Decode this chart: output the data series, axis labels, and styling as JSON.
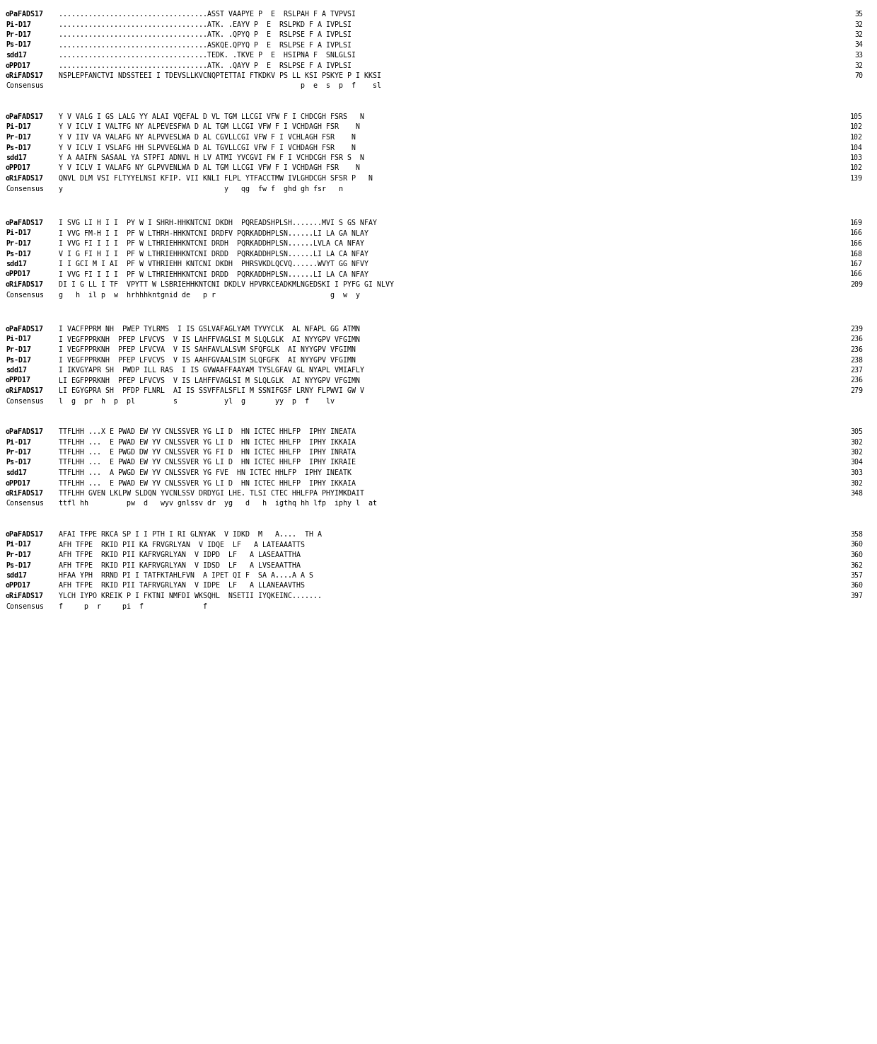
{
  "blocks": [
    {
      "sequences": [
        {
          "name": "oPaFADS17",
          "seq": "...................................ASST VAAPYE P  E  RSLPAH F A VPVSI",
          "num": 35
        },
        {
          "name": "Pi-D17",
          "seq": "...................................ATK. .EAYV P  E  RSLPKD F A VPLSI",
          "num": 32
        },
        {
          "name": "Pr-D17",
          "seq": "...................................ATK. .QPYQ P  E  RSLPSE F A VPLSI",
          "num": 32
        },
        {
          "name": "Ps-D17",
          "seq": "...................................ASKQE.QPYQ P  E  RSLPSE F A VPLSI",
          "num": 34
        },
        {
          "name": "sdd17",
          "seq": "...................................TEDK. .TKVE P  E  HSIPNA F  SNLGLSI",
          "num": 33
        },
        {
          "name": "oPPD17",
          "seq": "...................................ATK. .QAYV P  E  RSLPSE F A VPLSI",
          "num": 32
        },
        {
          "name": "oRiFADS17",
          "seq": "NSPLEPFANCTVI NDSSTEEI I TDEVSLLKVCNQPTETTAI FTKDKV PS LL  KSI PSKYE P I KKSI",
          "num": 70
        },
        {
          "name": "Consensus",
          "seq": "                                                         p   e   s   p  f    sl",
          "num": null
        }
      ]
    },
    {
      "sequences": [
        {
          "name": "oPaFADS17",
          "seq": "Y V VALG I GS LALG YY  ALAI VQEFAL D VL TGM LLCGI VFW F I CHDCGH  FSRS   N",
          "num": 105
        },
        {
          "name": "Pi-D17",
          "seq": "Y V ICLV I VA LTFG NY  ALPEVESFWA D AL  TGM LLCGI VFW F I VCHDAGH  FSR    N",
          "num": 102
        },
        {
          "name": "Pr-D17",
          "seq": "Y V IV VA  VA LAFG NY  ALPVVESLWA D AL  CGVLLCGI VFW F I VCHLAGH  FSR    N",
          "num": 102
        },
        {
          "name": "Ps-D17",
          "seq": "Y V ICLV I VS LAFG HH  SLPVVEGLWA D AL  TGVLLCGI VFW F I VCHDAGH  FSR    N",
          "num": 104
        },
        {
          "name": "sdd17",
          "seq": "Y A AAI FN SASAAL YA  STPFI ADNVL H LV ATMI YVCGVI FW F I VCHDCGH  FSR S  N",
          "num": 103
        },
        {
          "name": "oPPD17",
          "seq": "Y V ICLV I VA LAFG NY  GLPVVENLWA D AL  TGM LLCGI VFW F I VCHDAGH  FSR    N",
          "num": 102
        },
        {
          "name": "oRiFADS17",
          "seq": "QNVL DLM VSI  FLTYYELNSI KFIP. VI I KNLI FLPL YTFACCTMW  IVLGHDCGH SFSR P   N",
          "num": 139
        },
        {
          "name": "Consensus",
          "seq": "y                                         y   qg  fw f  ghd gh  fsr   n",
          "num": null
        }
      ],
      "underline": "ghd gh"
    },
    {
      "sequences": [
        {
          "name": "oPaFADS17",
          "seq": "I SVG LI H I I  PY  W I SBRH-HHKNTCNI DKDH  PQREADSHPLSH.......MVI S GS NFAY",
          "num": 169
        },
        {
          "name": "Pi-D17",
          "seq": "I VVG FM-H I I  PF  W LTHRH-HHKNTCNI DRDFV PQRKADDHPLSN......LI LA GA NLAY",
          "num": 166
        },
        {
          "name": "Pr-D17",
          "seq": "I VVG FI I I I  PF  W LTHRIEHHKNTCNI DRDH  PQRKADDHPLSN......LVLA CA NFAY",
          "num": 166
        },
        {
          "name": "Ps-D17",
          "seq": "V I G FI H I I  PF  W LTHRIEHHKNTCNI DRDD  PQRKADDHPLSN......LI LA CA NFAY",
          "num": 168
        },
        {
          "name": "sdd17",
          "seq": "I I GCI M I AI  PF  W VTHRIEHH KNTCNI DKDH  PHRSVKDLQCVQ......WVYT GG NFVY",
          "num": 167
        },
        {
          "name": "oPPD17",
          "seq": "I VVG FI I I I  PF  W LTHRIEHHKNTCNI DRDD  PQRKADDHPLSN......LI LA CA NFAY",
          "num": 166
        },
        {
          "name": "oRiFADS17",
          "seq": "DI I G LL I TF  VPYTT W LSBRIEHHKNTCNI DKDLV HPVRKCEADKMLNGEDSKI I PYFG GI NLVY",
          "num": 209
        },
        {
          "name": "Consensus",
          "seq": "g   h  il p  w  hrhhhkntgnid de   p r                           g  w  y",
          "num": null
        }
      ],
      "underline": "hrhhhknt"
    },
    {
      "sequences": [
        {
          "name": "oPaFADS17",
          "seq": "I VACFPPRM NH  PWEP TYLRMS  I IS GSLVAFAGLYAM TYVYCLK  AL NFAPL GG ATMN",
          "num": 239
        },
        {
          "name": "Pi-D17",
          "seq": "I VEGFPPRKNH  PFEP LFVCVS  V IS LAHFFVAGLSI M SLQLGLK  AI NYYGPV VFGIMN",
          "num": 236
        },
        {
          "name": "Pr-D17",
          "seq": "I VEGFPPRKNH  PFEP LFVCVA  V IS SAHFAVLALSVM SFQFGLK  AI NYYGPV VFGIMN",
          "num": 236
        },
        {
          "name": "Ps-D17",
          "seq": "I VEGFPPRKNH  PFEP LFVCVS  V IS AAHFGVAALSIM SLQFGFK  AI NYYGPV VFGIMN",
          "num": 238
        },
        {
          "name": "sdd17",
          "seq": "I IKVGYAPR SH  PWDP ILL RAS  I IS GVWAAFFAAYAM TYSLGFAV GL NYAPL VMIAFLY",
          "num": 237
        },
        {
          "name": "oPPD17",
          "seq": "LI EGFPPRKNH  PFEP LFVCVS  V IS LAHFFVAGLSI M SLQLGLK  AI NYYGPV VFGIMN",
          "num": 236
        },
        {
          "name": "oRiFADS17",
          "seq": "LI EGYGPRA SH  PFDP FLNRL  AI IS SSVFFALSFLI M SSNIFGSF  LRNY FLPWVI GW V",
          "num": 279
        },
        {
          "name": "Consensus",
          "seq": "l  g  pr   h  p   pl          s           yl  g       yy  p   f    lv",
          "num": null
        }
      ]
    },
    {
      "sequences": [
        {
          "name": "oPaFADS17",
          "seq": "TTFLHH ...X E PWAD EW YV CNLSSVER YG LI D  HN ICTEC HHLFP  IPHY INEATA",
          "num": 305
        },
        {
          "name": "Pi-D17",
          "seq": "TTFLHH ... E PWAD EW YV CNLSSVER YG LI D  HN ICTEC HHLFP  IPHY IKKAIA",
          "num": 302
        },
        {
          "name": "Pr-D17",
          "seq": "TTFLHH ... E PWGD DW YV CNLSSVER YG FI D  HN ICTEC HHLFP  IPHY INRATA",
          "num": 302
        },
        {
          "name": "Ps-D17",
          "seq": "TTFLHH ... E PWAD EW YV CNLSSVER YG LI D  HN ICTEC HHLFP  IPHY IKRAIE",
          "num": 304
        },
        {
          "name": "sdd17",
          "seq": "TTFLHH ... A PWGD EW YV CNLSSVER YG FVE  HN ICTEC HHLFP  IPHY INEATK",
          "num": 303
        },
        {
          "name": "oPPD17",
          "seq": "TTFLHH ... E PWAD EW YV CNLSSVER YG LI D  HN ICTEC HHLFP  IPHY IKKAIA",
          "num": 302
        },
        {
          "name": "oRiFADS17",
          "seq": "TTFLHH GVEN LKLPW SLDQN YVCNLSSV DRDYGI LHE. TLSI CTEC HHLFPA PHYIMKDAIT",
          "num": 348
        },
        {
          "name": "Consensus",
          "seq": "ttfl hh          pw  d   wyv gnlssv dr  yg   d   h  igthq hh lfp  iphy l   at",
          "num": null
        }
      ],
      "underline": "thq"
    },
    {
      "sequences": [
        {
          "name": "oPaFADS17",
          "seq": "AFAI TFPE RKCA SP I I PTH I RI GLNYAK  V IDKD  M   A....   TH A",
          "num": 358
        },
        {
          "name": "Pi-D17",
          "seq": "AFH TFPE  RKID PII KA FRVGRLYAN  V IDQE  LF   A LATEAAATTS",
          "num": 360
        },
        {
          "name": "Pr-D17",
          "seq": "AFH TFPE  RKID PII KAFRVGRLYAN  V IDPD  LF   A LASEAATTHA",
          "num": 360
        },
        {
          "name": "Ps-D17",
          "seq": "AFH TFPE  RKID PII KAFRVGRLYAN  V IDSD  LF   A LVSEAATTHA",
          "num": 362
        },
        {
          "name": "sdd17",
          "seq": "HFAA YPH  RRND PI I TATFKTAHLFVN  A IPET QI F  SA A....A A S",
          "num": 357
        },
        {
          "name": "oPPD17",
          "seq": "AFH TFPE  RKID PII TAFRVGRLYAN  V IDPE  LF   A LLANEAAVTHS",
          "num": 360
        },
        {
          "name": "oRiFADS17",
          "seq": "YLCH IYPO KREIK P I FKTNI NMFDI WKSQHL  NSETII IYQKEINC.......",
          "num": 397
        },
        {
          "name": "Consensus",
          "seq": "f     p  r     pi  f              f",
          "num": null
        }
      ]
    }
  ]
}
